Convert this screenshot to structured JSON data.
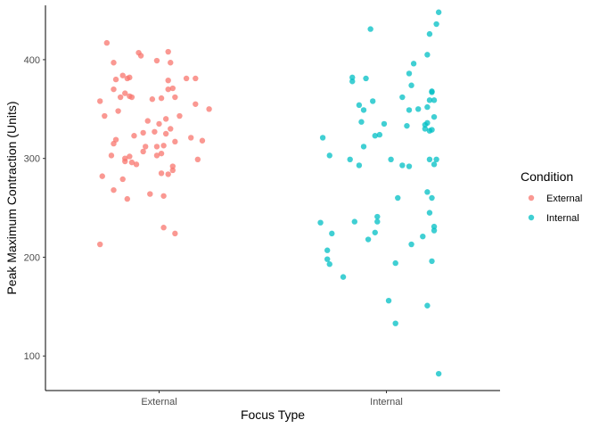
{
  "chart_data": {
    "type": "scatter",
    "title": "",
    "xlabel": "Focus Type",
    "ylabel": "Peak Maximum Contraction (Units)",
    "categories": [
      "External",
      "Internal"
    ],
    "ylim": [
      65,
      455
    ],
    "yticks": [
      100,
      200,
      300,
      400
    ],
    "grid": false,
    "legend": {
      "title": "Condition",
      "position": "right",
      "entries": [
        {
          "label": "External",
          "color": "#F8766D"
        },
        {
          "label": "Internal",
          "color": "#00BFC4"
        }
      ]
    },
    "series": [
      {
        "name": "External",
        "category": "External",
        "color": "#F8766D",
        "points": [
          {
            "jitter": -0.23,
            "y": 417
          },
          {
            "jitter": 0.04,
            "y": 408
          },
          {
            "jitter": -0.09,
            "y": 407
          },
          {
            "jitter": -0.08,
            "y": 404
          },
          {
            "jitter": -0.01,
            "y": 399
          },
          {
            "jitter": -0.2,
            "y": 397
          },
          {
            "jitter": 0.05,
            "y": 397
          },
          {
            "jitter": -0.16,
            "y": 384
          },
          {
            "jitter": -0.13,
            "y": 382
          },
          {
            "jitter": 0.12,
            "y": 381
          },
          {
            "jitter": -0.14,
            "y": 381
          },
          {
            "jitter": 0.16,
            "y": 381
          },
          {
            "jitter": -0.19,
            "y": 380
          },
          {
            "jitter": 0.04,
            "y": 379
          },
          {
            "jitter": 0.06,
            "y": 371
          },
          {
            "jitter": -0.2,
            "y": 370
          },
          {
            "jitter": 0.04,
            "y": 370
          },
          {
            "jitter": -0.15,
            "y": 366
          },
          {
            "jitter": -0.13,
            "y": 363
          },
          {
            "jitter": 0.07,
            "y": 362
          },
          {
            "jitter": -0.17,
            "y": 362
          },
          {
            "jitter": -0.12,
            "y": 362
          },
          {
            "jitter": 0.01,
            "y": 361
          },
          {
            "jitter": -0.03,
            "y": 360
          },
          {
            "jitter": -0.26,
            "y": 358
          },
          {
            "jitter": 0.16,
            "y": 355
          },
          {
            "jitter": 0.22,
            "y": 350
          },
          {
            "jitter": -0.18,
            "y": 348
          },
          {
            "jitter": -0.24,
            "y": 343
          },
          {
            "jitter": 0.09,
            "y": 343
          },
          {
            "jitter": 0.03,
            "y": 340
          },
          {
            "jitter": -0.05,
            "y": 338
          },
          {
            "jitter": 0.0,
            "y": 335
          },
          {
            "jitter": 0.05,
            "y": 330
          },
          {
            "jitter": -0.02,
            "y": 327
          },
          {
            "jitter": -0.07,
            "y": 326
          },
          {
            "jitter": 0.03,
            "y": 325
          },
          {
            "jitter": -0.11,
            "y": 323
          },
          {
            "jitter": 0.14,
            "y": 321
          },
          {
            "jitter": -0.19,
            "y": 319
          },
          {
            "jitter": 0.19,
            "y": 318
          },
          {
            "jitter": 0.07,
            "y": 317
          },
          {
            "jitter": -0.2,
            "y": 315
          },
          {
            "jitter": 0.02,
            "y": 313
          },
          {
            "jitter": -0.06,
            "y": 312
          },
          {
            "jitter": -0.01,
            "y": 312
          },
          {
            "jitter": -0.07,
            "y": 307
          },
          {
            "jitter": 0.01,
            "y": 305
          },
          {
            "jitter": -0.01,
            "y": 303
          },
          {
            "jitter": -0.21,
            "y": 303
          },
          {
            "jitter": -0.13,
            "y": 302
          },
          {
            "jitter": -0.15,
            "y": 300
          },
          {
            "jitter": 0.17,
            "y": 299
          },
          {
            "jitter": -0.15,
            "y": 297
          },
          {
            "jitter": -0.12,
            "y": 296
          },
          {
            "jitter": -0.1,
            "y": 294
          },
          {
            "jitter": 0.06,
            "y": 292
          },
          {
            "jitter": 0.06,
            "y": 288
          },
          {
            "jitter": 0.01,
            "y": 285
          },
          {
            "jitter": 0.04,
            "y": 284
          },
          {
            "jitter": -0.25,
            "y": 282
          },
          {
            "jitter": -0.16,
            "y": 279
          },
          {
            "jitter": -0.2,
            "y": 268
          },
          {
            "jitter": -0.04,
            "y": 264
          },
          {
            "jitter": 0.02,
            "y": 262
          },
          {
            "jitter": -0.14,
            "y": 259
          },
          {
            "jitter": 0.02,
            "y": 230
          },
          {
            "jitter": 0.07,
            "y": 224
          },
          {
            "jitter": -0.26,
            "y": 213
          }
        ]
      },
      {
        "name": "Internal",
        "category": "Internal",
        "color": "#00BFC4",
        "points": [
          {
            "jitter": 0.23,
            "y": 448
          },
          {
            "jitter": 0.22,
            "y": 436
          },
          {
            "jitter": -0.07,
            "y": 431
          },
          {
            "jitter": 0.19,
            "y": 426
          },
          {
            "jitter": 0.18,
            "y": 405
          },
          {
            "jitter": 0.12,
            "y": 396
          },
          {
            "jitter": 0.1,
            "y": 386
          },
          {
            "jitter": -0.15,
            "y": 382
          },
          {
            "jitter": -0.09,
            "y": 381
          },
          {
            "jitter": -0.15,
            "y": 378
          },
          {
            "jitter": 0.11,
            "y": 374
          },
          {
            "jitter": 0.2,
            "y": 368
          },
          {
            "jitter": 0.2,
            "y": 367
          },
          {
            "jitter": 0.07,
            "y": 362
          },
          {
            "jitter": 0.21,
            "y": 359
          },
          {
            "jitter": 0.19,
            "y": 359
          },
          {
            "jitter": -0.06,
            "y": 358
          },
          {
            "jitter": -0.12,
            "y": 354
          },
          {
            "jitter": 0.18,
            "y": 352
          },
          {
            "jitter": 0.14,
            "y": 350
          },
          {
            "jitter": -0.1,
            "y": 349
          },
          {
            "jitter": 0.1,
            "y": 349
          },
          {
            "jitter": 0.21,
            "y": 342
          },
          {
            "jitter": -0.11,
            "y": 337
          },
          {
            "jitter": 0.18,
            "y": 336
          },
          {
            "jitter": -0.01,
            "y": 335
          },
          {
            "jitter": 0.17,
            "y": 334
          },
          {
            "jitter": 0.09,
            "y": 333
          },
          {
            "jitter": 0.17,
            "y": 330
          },
          {
            "jitter": 0.2,
            "y": 329
          },
          {
            "jitter": 0.19,
            "y": 328
          },
          {
            "jitter": -0.03,
            "y": 324
          },
          {
            "jitter": -0.05,
            "y": 323
          },
          {
            "jitter": -0.28,
            "y": 321
          },
          {
            "jitter": -0.1,
            "y": 312
          },
          {
            "jitter": -0.25,
            "y": 303
          },
          {
            "jitter": -0.16,
            "y": 299
          },
          {
            "jitter": 0.02,
            "y": 299
          },
          {
            "jitter": 0.19,
            "y": 299
          },
          {
            "jitter": 0.22,
            "y": 299
          },
          {
            "jitter": 0.21,
            "y": 294
          },
          {
            "jitter": 0.07,
            "y": 293
          },
          {
            "jitter": 0.1,
            "y": 292
          },
          {
            "jitter": -0.12,
            "y": 293
          },
          {
            "jitter": 0.18,
            "y": 266
          },
          {
            "jitter": 0.05,
            "y": 260
          },
          {
            "jitter": 0.2,
            "y": 260
          },
          {
            "jitter": 0.19,
            "y": 245
          },
          {
            "jitter": -0.04,
            "y": 241
          },
          {
            "jitter": -0.04,
            "y": 236
          },
          {
            "jitter": -0.14,
            "y": 236
          },
          {
            "jitter": -0.29,
            "y": 235
          },
          {
            "jitter": 0.21,
            "y": 231
          },
          {
            "jitter": 0.21,
            "y": 227
          },
          {
            "jitter": -0.05,
            "y": 225
          },
          {
            "jitter": -0.24,
            "y": 224
          },
          {
            "jitter": 0.16,
            "y": 221
          },
          {
            "jitter": -0.08,
            "y": 218
          },
          {
            "jitter": 0.11,
            "y": 213
          },
          {
            "jitter": -0.26,
            "y": 207
          },
          {
            "jitter": -0.26,
            "y": 198
          },
          {
            "jitter": 0.2,
            "y": 196
          },
          {
            "jitter": 0.04,
            "y": 194
          },
          {
            "jitter": -0.25,
            "y": 193
          },
          {
            "jitter": -0.19,
            "y": 180
          },
          {
            "jitter": 0.01,
            "y": 156
          },
          {
            "jitter": 0.18,
            "y": 151
          },
          {
            "jitter": 0.04,
            "y": 133
          },
          {
            "jitter": 0.23,
            "y": 82
          }
        ]
      }
    ]
  }
}
